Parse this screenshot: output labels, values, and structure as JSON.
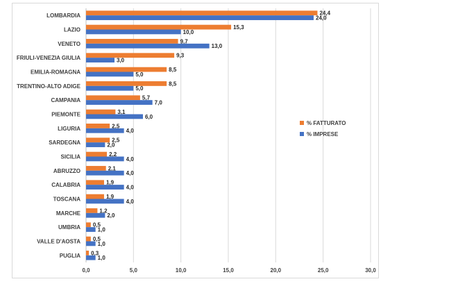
{
  "chart_data": {
    "type": "bar",
    "orientation": "horizontal",
    "categories": [
      "LOMBARDIA",
      "LAZIO",
      "VENETO",
      "FRIULI-VENEZIA GIULIA",
      "EMILIA-ROMAGNA",
      "TRENTINO-ALTO ADIGE",
      "CAMPANIA",
      "PIEMONTE",
      "LIGURIA",
      "SARDEGNA",
      "SICILIA",
      "ABRUZZO",
      "CALABRIA",
      "TOSCANA",
      "MARCHE",
      "UMBRIA",
      "VALLE D'AOSTA",
      "PUGLIA"
    ],
    "series": [
      {
        "name": "% FATTURATO",
        "color": "#ed7d31",
        "values": [
          24.4,
          15.3,
          9.7,
          9.3,
          8.5,
          8.5,
          5.7,
          3.1,
          2.5,
          2.5,
          2.2,
          2.1,
          1.9,
          1.9,
          1.2,
          0.5,
          0.5,
          0.3
        ],
        "labels": [
          "24,4",
          "15,3",
          "9,7",
          "9,3",
          "8,5",
          "8,5",
          "5,7",
          "3,1",
          "2,5",
          "2,5",
          "2,2",
          "2,1",
          "1,9",
          "1,9",
          "1,2",
          "0,5",
          "0,5",
          "0,3"
        ]
      },
      {
        "name": "% IMPRESE",
        "color": "#4472c4",
        "values": [
          24.0,
          10.0,
          13.0,
          3.0,
          5.0,
          5.0,
          7.0,
          6.0,
          4.0,
          2.0,
          4.0,
          4.0,
          4.0,
          4.0,
          2.0,
          1.0,
          1.0,
          1.0
        ],
        "labels": [
          "24,0",
          "10,0",
          "13,0",
          "3,0",
          "5,0",
          "5,0",
          "7,0",
          "6,0",
          "4,0",
          "2,0",
          "4,0",
          "4,0",
          "4,0",
          "4,0",
          "2,0",
          "1,0",
          "1,0",
          "1,0"
        ]
      }
    ],
    "xlim": [
      0,
      30
    ],
    "xticks": [
      0,
      5,
      10,
      15,
      20,
      25,
      30
    ],
    "xtick_labels": [
      "0,0",
      "5,0",
      "10,0",
      "15,0",
      "20,0",
      "25,0",
      "30,0"
    ],
    "grid": "vertical",
    "legend_position": "right"
  }
}
